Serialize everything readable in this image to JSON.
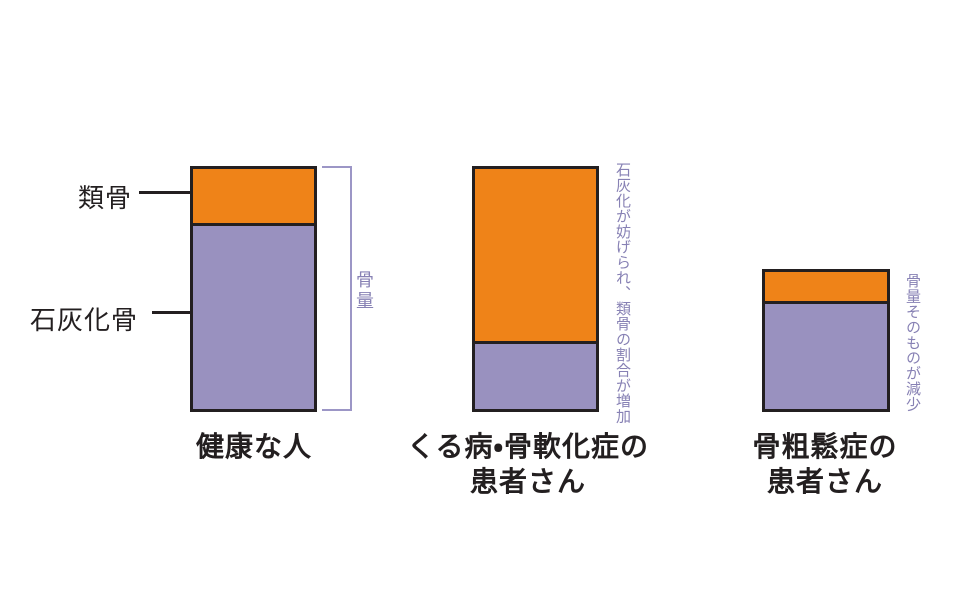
{
  "figure": {
    "background": "#ffffff",
    "colors": {
      "osteoid": "#ef8318",
      "calcified": "#9991bf",
      "outline": "#231f20",
      "caption_text": "#231f20",
      "annotation_text": "#8781b4",
      "bracket_line": "#9c96c6"
    },
    "legend": {
      "osteoid": "類骨",
      "calcified": "石灰化骨"
    },
    "bracket_label": "骨量",
    "bars": [
      {
        "id": "healthy",
        "caption_lines": [
          "健康な人"
        ],
        "annotation": ""
      },
      {
        "id": "rickets-osteomalacia",
        "caption_lines": [
          "くる病・骨軟化症の",
          "患者さん"
        ],
        "annotation": "石灰化が妨げられ、類骨の割合が増加"
      },
      {
        "id": "osteoporosis",
        "caption_lines": [
          "骨粗鬆症の",
          "患者さん"
        ],
        "annotation": "骨量そのものが減少"
      }
    ]
  },
  "chart_data": {
    "type": "bar",
    "stacked": true,
    "orientation": "vertical",
    "categories": [
      "健康な人",
      "くる病・骨軟化症の患者さん",
      "骨粗鬆症の患者さん"
    ],
    "series": [
      {
        "name": "石灰化骨",
        "color": "#9991bf",
        "values": [
          77,
          29,
          45
        ]
      },
      {
        "name": "類骨",
        "color": "#ef8318",
        "values": [
          23,
          71,
          13
        ]
      }
    ],
    "units": "relative bone mass (healthy person total = 100)",
    "ylim": [
      0,
      100
    ],
    "grid": false,
    "axes_shown": false,
    "legend_position": "left-labels-with-pointer-lines",
    "annotations": [
      {
        "category": "健康な人",
        "text": "骨量",
        "style": "bracket-right"
      },
      {
        "category": "くる病・骨軟化症の患者さん",
        "text": "石灰化が妨げられ、類骨の割合が増加",
        "style": "vertical-right"
      },
      {
        "category": "骨粗鬆症の患者さん",
        "text": "骨量そのものが減少",
        "style": "vertical-right"
      }
    ]
  }
}
